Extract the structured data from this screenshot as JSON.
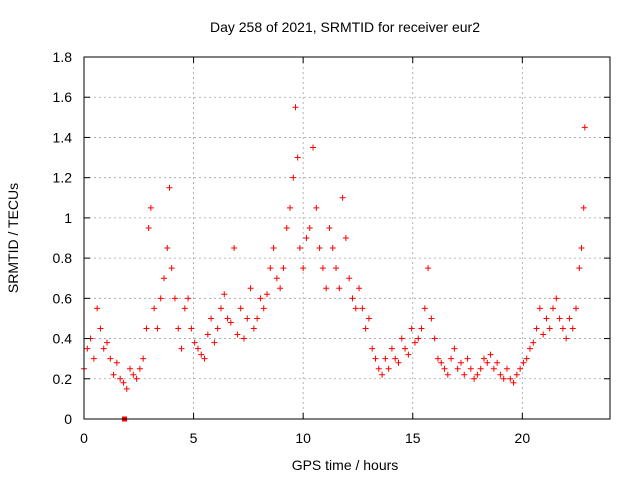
{
  "chart_data": {
    "type": "scatter",
    "title": "Day 258 of 2021, SRMTID for receiver eur2",
    "xlabel": "GPS time / hours",
    "ylabel": "SRMTID / TECUs",
    "xlim": [
      0,
      24
    ],
    "ylim": [
      0,
      1.8
    ],
    "xticks": [
      0,
      5,
      10,
      15,
      20
    ],
    "xtick_labels": [
      "0",
      "5",
      "10",
      "15",
      "20"
    ],
    "yticks": [
      0,
      0.2,
      0.4,
      0.6,
      0.8,
      1,
      1.2,
      1.4,
      1.6,
      1.8
    ],
    "ytick_labels": [
      "0",
      "0.2",
      "0.4",
      "0.6",
      "0.8",
      "1",
      "1.2",
      "1.4",
      "1.6",
      "1.8"
    ],
    "grid": true,
    "marker": "+",
    "color": "#ff0000",
    "series": [
      {
        "name": "eur2",
        "x": [
          0.0,
          0.15,
          0.3,
          0.45,
          0.6,
          0.75,
          0.9,
          1.05,
          1.2,
          1.35,
          1.5,
          1.65,
          1.8,
          1.95,
          2.1,
          2.25,
          2.4,
          2.55,
          2.7,
          2.85,
          2.95,
          3.05,
          3.2,
          3.35,
          3.5,
          3.65,
          3.8,
          3.9,
          4.0,
          4.15,
          4.3,
          4.45,
          4.6,
          4.75,
          4.9,
          5.05,
          5.2,
          5.35,
          5.5,
          5.65,
          5.8,
          5.95,
          6.1,
          6.25,
          6.4,
          6.55,
          6.7,
          6.85,
          7.0,
          7.15,
          7.3,
          7.45,
          7.6,
          7.75,
          7.9,
          8.05,
          8.2,
          8.35,
          8.5,
          8.65,
          8.8,
          8.95,
          9.1,
          9.25,
          9.4,
          9.55,
          9.65,
          9.75,
          9.85,
          10.0,
          10.15,
          10.3,
          10.45,
          10.6,
          10.75,
          10.9,
          11.05,
          11.2,
          11.35,
          11.5,
          11.65,
          11.8,
          11.95,
          12.1,
          12.25,
          12.4,
          12.55,
          12.7,
          12.85,
          13.0,
          13.15,
          13.3,
          13.45,
          13.6,
          13.75,
          13.9,
          14.05,
          14.2,
          14.35,
          14.5,
          14.65,
          14.8,
          14.95,
          15.1,
          15.25,
          15.4,
          15.55,
          15.7,
          15.85,
          16.0,
          16.15,
          16.3,
          16.45,
          16.6,
          16.75,
          16.9,
          17.05,
          17.2,
          17.35,
          17.5,
          17.65,
          17.8,
          17.95,
          18.1,
          18.25,
          18.4,
          18.55,
          18.7,
          18.85,
          19.0,
          19.15,
          19.3,
          19.45,
          19.6,
          19.75,
          19.9,
          20.05,
          20.2,
          20.35,
          20.5,
          20.65,
          20.8,
          20.95,
          21.1,
          21.25,
          21.4,
          21.55,
          21.7,
          21.85,
          22.0,
          22.15,
          22.3,
          22.45,
          22.6,
          22.7,
          22.8,
          22.85
        ],
        "y": [
          0.25,
          0.35,
          0.4,
          0.3,
          0.55,
          0.45,
          0.35,
          0.38,
          0.3,
          0.22,
          0.28,
          0.2,
          0.18,
          0.15,
          0.25,
          0.22,
          0.2,
          0.25,
          0.3,
          0.45,
          0.95,
          1.05,
          0.55,
          0.45,
          0.6,
          0.7,
          0.85,
          1.15,
          0.75,
          0.6,
          0.45,
          0.35,
          0.55,
          0.6,
          0.45,
          0.38,
          0.35,
          0.32,
          0.3,
          0.42,
          0.5,
          0.38,
          0.45,
          0.55,
          0.62,
          0.5,
          0.48,
          0.85,
          0.42,
          0.55,
          0.4,
          0.5,
          0.65,
          0.45,
          0.5,
          0.6,
          0.55,
          0.62,
          0.75,
          0.85,
          0.7,
          0.65,
          0.75,
          0.95,
          1.05,
          1.2,
          1.55,
          1.3,
          0.85,
          0.75,
          0.9,
          0.95,
          1.35,
          1.05,
          0.85,
          0.75,
          0.65,
          0.95,
          0.85,
          0.75,
          0.65,
          1.1,
          0.9,
          0.7,
          0.6,
          0.55,
          0.65,
          0.55,
          0.45,
          0.5,
          0.35,
          0.3,
          0.25,
          0.22,
          0.3,
          0.25,
          0.35,
          0.3,
          0.28,
          0.4,
          0.35,
          0.32,
          0.45,
          0.38,
          0.4,
          0.45,
          0.55,
          0.75,
          0.5,
          0.4,
          0.3,
          0.28,
          0.25,
          0.22,
          0.3,
          0.35,
          0.25,
          0.28,
          0.22,
          0.3,
          0.25,
          0.2,
          0.22,
          0.25,
          0.3,
          0.28,
          0.32,
          0.25,
          0.28,
          0.22,
          0.2,
          0.25,
          0.2,
          0.18,
          0.22,
          0.25,
          0.28,
          0.3,
          0.35,
          0.38,
          0.45,
          0.55,
          0.42,
          0.5,
          0.45,
          0.55,
          0.6,
          0.5,
          0.45,
          0.4,
          0.5,
          0.45,
          0.55,
          0.75,
          0.85,
          1.05,
          1.45
        ]
      }
    ],
    "annotations": [
      {
        "x": 1.85,
        "y": 0.0,
        "marker": "square"
      }
    ]
  }
}
